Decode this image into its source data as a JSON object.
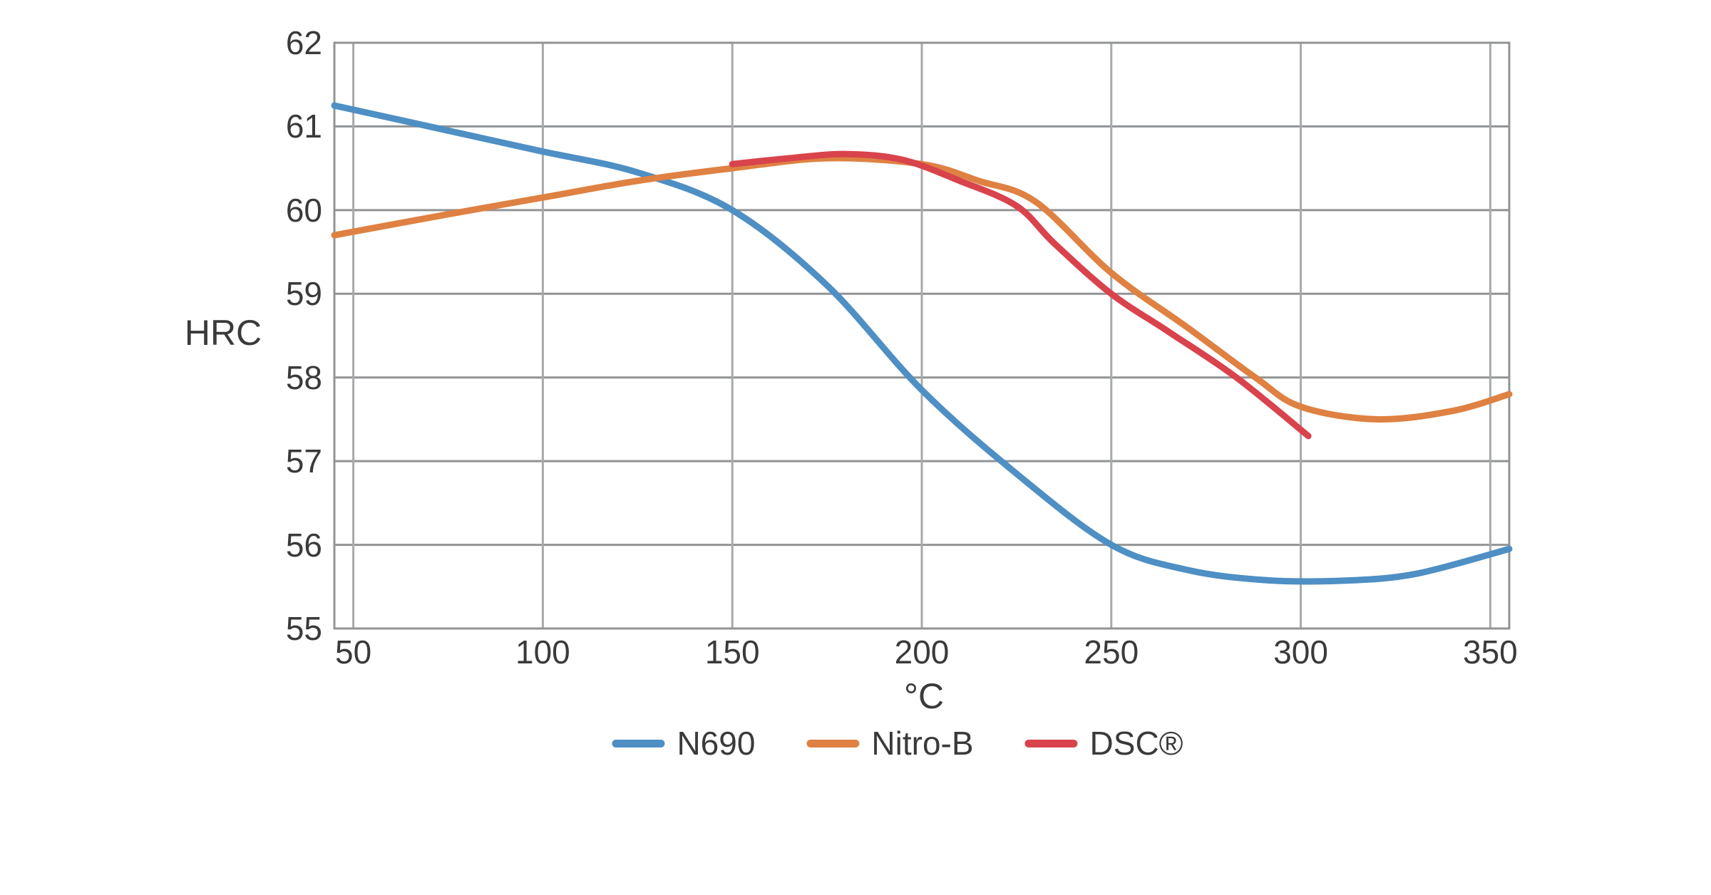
{
  "chart_data": {
    "type": "line",
    "title": "",
    "xlabel": "°C",
    "ylabel": "HRC",
    "xlim": [
      45,
      355
    ],
    "ylim": [
      55,
      62
    ],
    "x_ticks": [
      "50",
      "100",
      "150",
      "200",
      "250",
      "300",
      "350"
    ],
    "x_tick_values": [
      50,
      100,
      150,
      200,
      250,
      300,
      350
    ],
    "y_ticks": [
      "62",
      "61",
      "60",
      "59",
      "58",
      "57",
      "56",
      "55"
    ],
    "y_tick_values": [
      62,
      61,
      60,
      59,
      58,
      57,
      56,
      55
    ],
    "grid": true,
    "legend_position": "bottom",
    "colors": {
      "grid_horizontal": "#919395",
      "grid_vertical": "#a7a9ab",
      "plot_border": "#919395",
      "text": "#3a3a3a",
      "background": "#ffffff"
    },
    "series": [
      {
        "name": "N690",
        "color": "#4e8fc4",
        "points": [
          [
            45,
            61.25
          ],
          [
            75,
            60.95
          ],
          [
            100,
            60.7
          ],
          [
            125,
            60.45
          ],
          [
            150,
            60.0
          ],
          [
            175,
            59.1
          ],
          [
            200,
            57.85
          ],
          [
            225,
            56.85
          ],
          [
            250,
            56.0
          ],
          [
            270,
            55.7
          ],
          [
            290,
            55.58
          ],
          [
            310,
            55.57
          ],
          [
            330,
            55.65
          ],
          [
            355,
            55.95
          ]
        ]
      },
      {
        "name": "Nitro-B",
        "color": "#df8142",
        "points": [
          [
            45,
            59.7
          ],
          [
            75,
            59.95
          ],
          [
            100,
            60.15
          ],
          [
            125,
            60.35
          ],
          [
            150,
            60.5
          ],
          [
            175,
            60.62
          ],
          [
            200,
            60.55
          ],
          [
            215,
            60.35
          ],
          [
            230,
            60.1
          ],
          [
            250,
            59.25
          ],
          [
            270,
            58.6
          ],
          [
            288,
            58.0
          ],
          [
            300,
            57.65
          ],
          [
            320,
            57.5
          ],
          [
            340,
            57.6
          ],
          [
            355,
            57.8
          ]
        ]
      },
      {
        "name": "DSC®",
        "color": "#d9434c",
        "points": [
          [
            150,
            60.55
          ],
          [
            165,
            60.62
          ],
          [
            180,
            60.67
          ],
          [
            195,
            60.6
          ],
          [
            210,
            60.35
          ],
          [
            225,
            60.05
          ],
          [
            235,
            59.6
          ],
          [
            250,
            59.0
          ],
          [
            265,
            58.55
          ],
          [
            283,
            58.0
          ],
          [
            302,
            57.3
          ]
        ]
      }
    ]
  }
}
